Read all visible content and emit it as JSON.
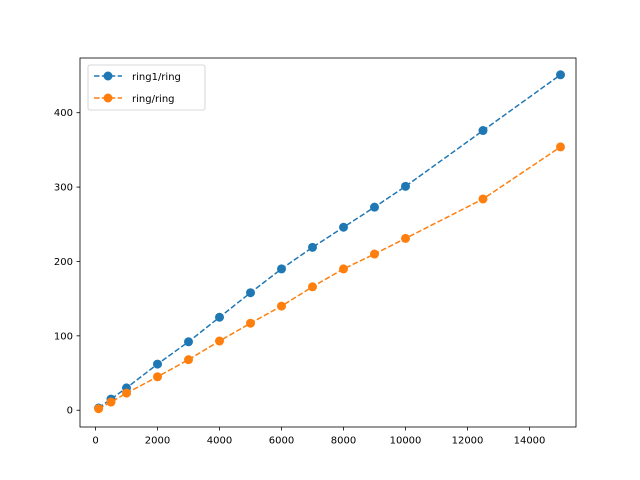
{
  "chart_data": {
    "type": "line",
    "title": "",
    "xlabel": "",
    "ylabel": "",
    "xlim": [
      -500,
      15500
    ],
    "ylim": [
      -22.55,
      473.55
    ],
    "xticks": [
      0,
      2000,
      4000,
      6000,
      8000,
      10000,
      12000,
      14000
    ],
    "xtick_labels": [
      "0",
      "2000",
      "4000",
      "6000",
      "8000",
      "10000",
      "12000",
      "14000"
    ],
    "yticks": [
      0,
      100,
      200,
      300,
      400
    ],
    "ytick_labels": [
      "0",
      "100",
      "200",
      "300",
      "400"
    ],
    "grid": false,
    "legend_position": "upper-left",
    "x": [
      100,
      500,
      1000,
      2000,
      3000,
      4000,
      5000,
      6000,
      7000,
      8000,
      9000,
      10000,
      12500,
      15000
    ],
    "series": [
      {
        "name": "ring1/ring",
        "color": "#1f77b4",
        "line_style": "dashed",
        "marker": "circle",
        "values": [
          3,
          15,
          30,
          62,
          92,
          125,
          158,
          190,
          219,
          246,
          273,
          301,
          376,
          451
        ]
      },
      {
        "name": "ring/ring",
        "color": "#ff7f0e",
        "line_style": "dashed",
        "marker": "circle",
        "values": [
          2,
          11,
          23,
          45,
          68,
          93,
          117,
          140,
          166,
          190,
          210,
          231,
          284,
          354
        ]
      }
    ]
  }
}
